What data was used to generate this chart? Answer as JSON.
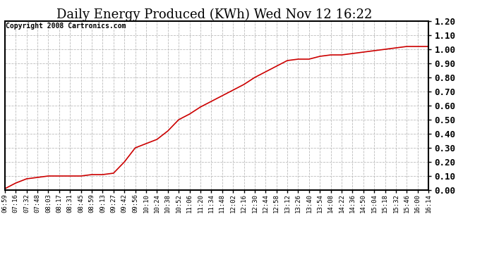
{
  "title": "Daily Energy Produced (KWh) Wed Nov 12 16:22",
  "copyright_text": "Copyright 2008 Cartronics.com",
  "line_color": "#cc0000",
  "background_color": "#ffffff",
  "plot_bg_color": "#ffffff",
  "grid_color": "#bbbbbb",
  "ylim": [
    0.0,
    1.2
  ],
  "yticks": [
    0.0,
    0.1,
    0.2,
    0.3,
    0.4,
    0.5,
    0.6,
    0.7,
    0.8,
    0.9,
    1.0,
    1.1,
    1.2
  ],
  "x_labels": [
    "06:59",
    "07:16",
    "07:32",
    "07:48",
    "08:03",
    "08:17",
    "08:31",
    "08:45",
    "08:59",
    "09:13",
    "09:27",
    "09:42",
    "09:56",
    "10:10",
    "10:24",
    "10:38",
    "10:52",
    "11:06",
    "11:20",
    "11:34",
    "11:48",
    "12:02",
    "12:16",
    "12:30",
    "12:44",
    "12:58",
    "13:12",
    "13:26",
    "13:40",
    "13:54",
    "14:08",
    "14:22",
    "14:36",
    "14:50",
    "15:04",
    "15:18",
    "15:32",
    "15:46",
    "16:00",
    "16:14"
  ],
  "y_values": [
    0.01,
    0.05,
    0.08,
    0.09,
    0.1,
    0.1,
    0.1,
    0.1,
    0.11,
    0.11,
    0.12,
    0.2,
    0.3,
    0.33,
    0.36,
    0.42,
    0.5,
    0.54,
    0.59,
    0.63,
    0.67,
    0.71,
    0.75,
    0.8,
    0.84,
    0.88,
    0.92,
    0.93,
    0.93,
    0.95,
    0.96,
    0.96,
    0.97,
    0.98,
    0.99,
    1.0,
    1.01,
    1.02,
    1.02,
    1.02
  ],
  "title_fontsize": 13,
  "copyright_fontsize": 7,
  "ytick_fontsize": 9,
  "xtick_fontsize": 6.5
}
